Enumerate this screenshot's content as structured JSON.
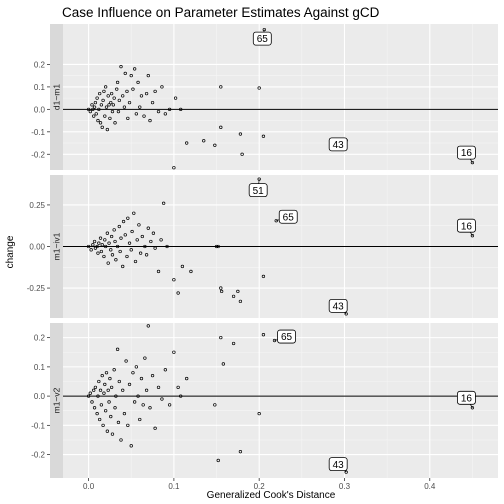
{
  "chart_data": {
    "type": "scatter",
    "title": "Case Influence on Parameter Estimates Against gCD",
    "xlabel": "Generalized Cook's Distance",
    "ylabel": "change",
    "xlim": [
      -0.03,
      0.48
    ],
    "x_ticks": [
      "0.0",
      "0.1",
      "0.2",
      "0.3",
      "0.4"
    ],
    "x_tick_values": [
      0.0,
      0.1,
      0.2,
      0.3,
      0.4
    ],
    "grid": true,
    "panels": [
      {
        "strip": "d1~m1",
        "ylim": [
          -0.27,
          0.38
        ],
        "y_ticks": [
          "-0.2",
          "-0.1",
          "0.0",
          "0.1",
          "0.2"
        ],
        "y_tick_values": [
          -0.2,
          -0.1,
          0.0,
          0.1,
          0.2
        ],
        "labels": [
          {
            "text": "65",
            "x": 0.206,
            "y": 0.355
          },
          {
            "text": "43",
            "x": 0.302,
            "y": -0.138
          },
          {
            "text": "16",
            "x": 0.45,
            "y": -0.237
          }
        ],
        "points": [
          [
            0.0,
            0.0
          ],
          [
            0.002,
            -0.01
          ],
          [
            0.004,
            0.02
          ],
          [
            0.005,
            0.0
          ],
          [
            0.006,
            -0.03
          ],
          [
            0.007,
            0.01
          ],
          [
            0.008,
            0.03
          ],
          [
            0.009,
            -0.02
          ],
          [
            0.01,
            0.05
          ],
          [
            0.011,
            -0.05
          ],
          [
            0.012,
            0.0
          ],
          [
            0.013,
            0.07
          ],
          [
            0.014,
            -0.06
          ],
          [
            0.015,
            0.02
          ],
          [
            0.016,
            -0.08
          ],
          [
            0.017,
            0.04
          ],
          [
            0.018,
            0.08
          ],
          [
            0.019,
            -0.03
          ],
          [
            0.02,
            0.1
          ],
          [
            0.021,
            0.01
          ],
          [
            0.022,
            -0.09
          ],
          [
            0.023,
            0.06
          ],
          [
            0.024,
            0.02
          ],
          [
            0.025,
            -0.04
          ],
          [
            0.026,
            0.03
          ],
          [
            0.027,
            0.07
          ],
          [
            0.028,
            -0.01
          ],
          [
            0.029,
            0.02
          ],
          [
            0.03,
            0.05
          ],
          [
            0.031,
            -0.06
          ],
          [
            0.033,
            0.09
          ],
          [
            0.034,
            0.12
          ],
          [
            0.035,
            -0.01
          ],
          [
            0.036,
            0.04
          ],
          [
            0.038,
            0.19
          ],
          [
            0.04,
            0.06
          ],
          [
            0.042,
            0.01
          ],
          [
            0.043,
            0.16
          ],
          [
            0.045,
            0.08
          ],
          [
            0.046,
            -0.04
          ],
          [
            0.048,
            0.03
          ],
          [
            0.05,
            0.15
          ],
          [
            0.052,
            0.09
          ],
          [
            0.054,
            0.18
          ],
          [
            0.056,
            -0.02
          ],
          [
            0.058,
            0.12
          ],
          [
            0.06,
            0.01
          ],
          [
            0.062,
            0.06
          ],
          [
            0.065,
            -0.03
          ],
          [
            0.068,
            0.07
          ],
          [
            0.07,
            0.15
          ],
          [
            0.072,
            -0.05
          ],
          [
            0.075,
            0.03
          ],
          [
            0.078,
            0.08
          ],
          [
            0.082,
            -0.01
          ],
          [
            0.086,
            0.1
          ],
          [
            0.09,
            -0.02
          ],
          [
            0.095,
            0.0
          ],
          [
            0.1,
            -0.26
          ],
          [
            0.102,
            0.05
          ],
          [
            0.108,
            0.0
          ],
          [
            0.115,
            -0.15
          ],
          [
            0.135,
            -0.14
          ],
          [
            0.148,
            -0.16
          ],
          [
            0.155,
            -0.08
          ],
          [
            0.155,
            0.1
          ],
          [
            0.178,
            -0.11
          ],
          [
            0.18,
            -0.2
          ],
          [
            0.2,
            0.095
          ],
          [
            0.205,
            -0.12
          ],
          [
            0.206,
            0.355
          ],
          [
            0.302,
            -0.138
          ],
          [
            0.45,
            -0.237
          ]
        ]
      },
      {
        "strip": "m1~iv1",
        "ylim": [
          -0.43,
          0.43
        ],
        "y_ticks": [
          "-0.25",
          "0.00",
          "0.25"
        ],
        "y_tick_values": [
          -0.25,
          0.0,
          0.25
        ],
        "labels": [
          {
            "text": "51",
            "x": 0.2,
            "y": 0.405
          },
          {
            "text": "65",
            "x": 0.22,
            "y": 0.155
          },
          {
            "text": "16",
            "x": 0.45,
            "y": 0.065
          },
          {
            "text": "43",
            "x": 0.302,
            "y": -0.405
          }
        ],
        "points": [
          [
            0.0,
            0.0
          ],
          [
            0.003,
            -0.02
          ],
          [
            0.005,
            0.01
          ],
          [
            0.007,
            0.03
          ],
          [
            0.008,
            -0.01
          ],
          [
            0.01,
            0.0
          ],
          [
            0.011,
            -0.04
          ],
          [
            0.012,
            0.02
          ],
          [
            0.014,
            0.05
          ],
          [
            0.015,
            -0.03
          ],
          [
            0.016,
            0.01
          ],
          [
            0.018,
            -0.06
          ],
          [
            0.019,
            0.04
          ],
          [
            0.02,
            0.0
          ],
          [
            0.022,
            0.08
          ],
          [
            0.023,
            -0.1
          ],
          [
            0.024,
            0.02
          ],
          [
            0.026,
            -0.02
          ],
          [
            0.027,
            0.06
          ],
          [
            0.028,
            -0.05
          ],
          [
            0.03,
            0.1
          ],
          [
            0.031,
            0.03
          ],
          [
            0.032,
            -0.08
          ],
          [
            0.034,
            0.0
          ],
          [
            0.036,
            0.12
          ],
          [
            0.037,
            -0.03
          ],
          [
            0.038,
            0.05
          ],
          [
            0.04,
            -0.12
          ],
          [
            0.041,
            0.15
          ],
          [
            0.043,
            0.07
          ],
          [
            0.045,
            -0.06
          ],
          [
            0.046,
            0.17
          ],
          [
            0.048,
            0.02
          ],
          [
            0.05,
            -0.02
          ],
          [
            0.051,
            0.09
          ],
          [
            0.053,
            0.2
          ],
          [
            0.055,
            -0.09
          ],
          [
            0.057,
            0.04
          ],
          [
            0.059,
            0.13
          ],
          [
            0.061,
            -0.04
          ],
          [
            0.063,
            0.06
          ],
          [
            0.066,
            0.0
          ],
          [
            0.068,
            -0.05
          ],
          [
            0.07,
            0.11
          ],
          [
            0.073,
            0.03
          ],
          [
            0.076,
            0.08
          ],
          [
            0.078,
            -0.01
          ],
          [
            0.082,
            -0.15
          ],
          [
            0.085,
            0.04
          ],
          [
            0.088,
            0.26
          ],
          [
            0.092,
            0.0
          ],
          [
            0.1,
            -0.2
          ],
          [
            0.105,
            -0.28
          ],
          [
            0.11,
            -0.12
          ],
          [
            0.12,
            -0.15
          ],
          [
            0.15,
            0.0
          ],
          [
            0.152,
            0.0
          ],
          [
            0.155,
            -0.25
          ],
          [
            0.156,
            -0.27
          ],
          [
            0.17,
            -0.3
          ],
          [
            0.175,
            -0.27
          ],
          [
            0.178,
            -0.33
          ],
          [
            0.205,
            -0.18
          ],
          [
            0.2,
            0.405
          ],
          [
            0.22,
            0.155
          ],
          [
            0.45,
            0.065
          ],
          [
            0.302,
            -0.405
          ]
        ]
      },
      {
        "strip": "m1~v2",
        "ylim": [
          -0.28,
          0.25
        ],
        "y_ticks": [
          "-0.2",
          "-0.1",
          "0.0",
          "0.1",
          "0.2"
        ],
        "y_tick_values": [
          -0.2,
          -0.1,
          0.0,
          0.1,
          0.2
        ],
        "labels": [
          {
            "text": "65",
            "x": 0.218,
            "y": 0.19
          },
          {
            "text": "16",
            "x": 0.45,
            "y": -0.04
          },
          {
            "text": "43",
            "x": 0.302,
            "y": -0.26
          }
        ],
        "points": [
          [
            0.0,
            0.0
          ],
          [
            0.002,
            0.01
          ],
          [
            0.004,
            -0.02
          ],
          [
            0.006,
            0.02
          ],
          [
            0.007,
            -0.04
          ],
          [
            0.008,
            0.03
          ],
          [
            0.01,
            -0.06
          ],
          [
            0.011,
            0.0
          ],
          [
            0.012,
            0.05
          ],
          [
            0.013,
            -0.08
          ],
          [
            0.014,
            0.02
          ],
          [
            0.015,
            -0.03
          ],
          [
            0.016,
            0.07
          ],
          [
            0.017,
            -0.1
          ],
          [
            0.018,
            0.01
          ],
          [
            0.019,
            0.04
          ],
          [
            0.02,
            -0.05
          ],
          [
            0.021,
            0.08
          ],
          [
            0.022,
            -0.12
          ],
          [
            0.023,
            0.02
          ],
          [
            0.024,
            -0.02
          ],
          [
            0.025,
            0.06
          ],
          [
            0.026,
            -0.07
          ],
          [
            0.027,
            0.03
          ],
          [
            0.028,
            -0.13
          ],
          [
            0.03,
            0.09
          ],
          [
            0.031,
            -0.04
          ],
          [
            0.032,
            0.0
          ],
          [
            0.034,
            0.16
          ],
          [
            0.035,
            -0.09
          ],
          [
            0.036,
            0.05
          ],
          [
            0.038,
            -0.15
          ],
          [
            0.04,
            0.02
          ],
          [
            0.042,
            -0.06
          ],
          [
            0.044,
            0.12
          ],
          [
            0.046,
            -0.1
          ],
          [
            0.048,
            0.04
          ],
          [
            0.05,
            -0.17
          ],
          [
            0.052,
            0.08
          ],
          [
            0.054,
            -0.02
          ],
          [
            0.056,
            0.1
          ],
          [
            0.058,
            0.0
          ],
          [
            0.06,
            -0.08
          ],
          [
            0.062,
            0.06
          ],
          [
            0.064,
            -0.03
          ],
          [
            0.066,
            0.13
          ],
          [
            0.068,
            0.02
          ],
          [
            0.07,
            0.24
          ],
          [
            0.072,
            -0.04
          ],
          [
            0.075,
            0.07
          ],
          [
            0.078,
            -0.11
          ],
          [
            0.082,
            0.03
          ],
          [
            0.086,
            -0.01
          ],
          [
            0.09,
            0.09
          ],
          [
            0.095,
            -0.03
          ],
          [
            0.1,
            0.15
          ],
          [
            0.105,
            0.03
          ],
          [
            0.108,
            0.0
          ],
          [
            0.115,
            0.06
          ],
          [
            0.148,
            -0.03
          ],
          [
            0.152,
            -0.22
          ],
          [
            0.155,
            0.2
          ],
          [
            0.158,
            0.11
          ],
          [
            0.17,
            0.18
          ],
          [
            0.178,
            -0.19
          ],
          [
            0.2,
            -0.06
          ],
          [
            0.205,
            0.21
          ],
          [
            0.218,
            0.19
          ],
          [
            0.45,
            -0.04
          ],
          [
            0.302,
            -0.26
          ]
        ]
      }
    ]
  }
}
